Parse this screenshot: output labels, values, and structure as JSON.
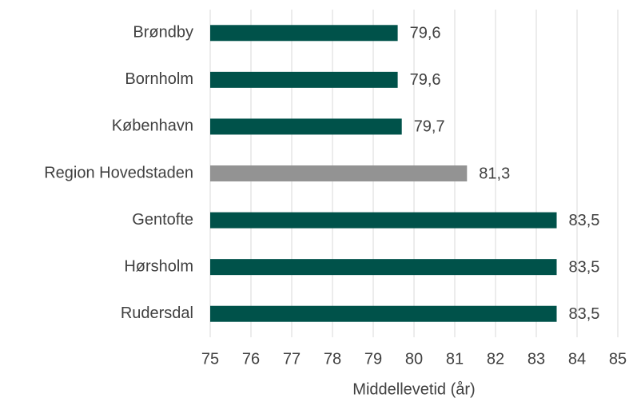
{
  "chart_data": {
    "type": "barh",
    "x_label": "Middellevetid (år)",
    "categories": [
      "Brøndby",
      "Bornholm",
      "København",
      "Region Hovedstaden",
      "Gentofte",
      "Hørsholm",
      "Rudersdal"
    ],
    "values": [
      79.6,
      79.6,
      79.7,
      81.3,
      83.5,
      83.5,
      83.5
    ],
    "value_labels": [
      "79,6",
      "79,6",
      "79,7",
      "81,3",
      "83,5",
      "83,5",
      "83,5"
    ],
    "colors": [
      "#00524a",
      "#00524a",
      "#00524a",
      "#939393",
      "#00524a",
      "#00524a",
      "#00524a"
    ],
    "xlim": [
      75,
      85
    ],
    "xticks": [
      75,
      76,
      77,
      78,
      79,
      80,
      81,
      82,
      83,
      84,
      85
    ],
    "grid": true
  }
}
